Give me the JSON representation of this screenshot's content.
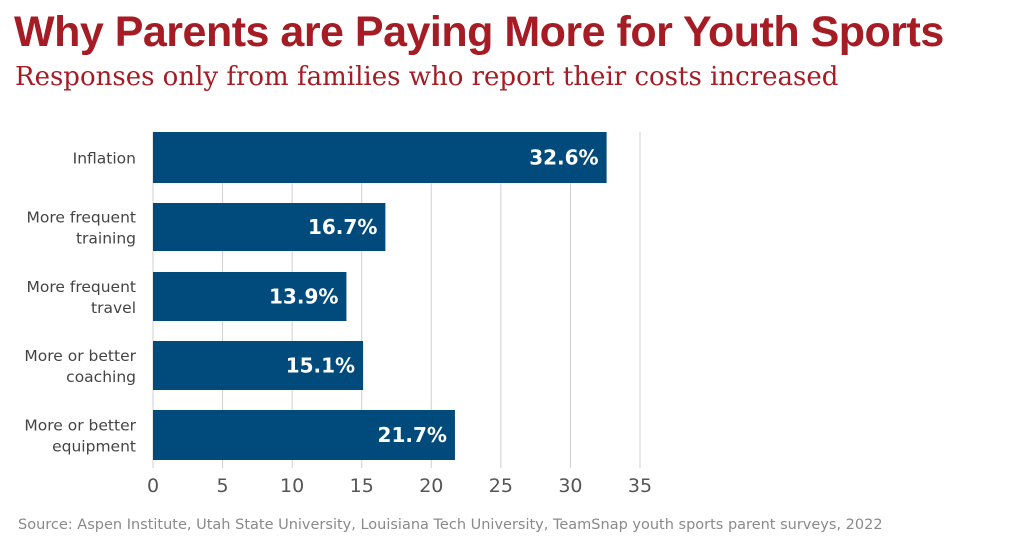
{
  "title": "Why Parents are Paying More for Youth Sports",
  "subtitle": "Responses only from families who report their costs increased",
  "source": "Source: Aspen Institute, Utah State University, Louisiana Tech University, TeamSnap youth sports parent surveys, 2022",
  "chart_data": {
    "type": "bar",
    "orientation": "horizontal",
    "categories": [
      [
        "Inflation"
      ],
      [
        "More frequent",
        "training"
      ],
      [
        "More frequent",
        "travel"
      ],
      [
        "More or better",
        "coaching"
      ],
      [
        "More or better",
        "equipment"
      ]
    ],
    "values": [
      32.6,
      16.7,
      13.9,
      15.1,
      21.7
    ],
    "data_labels": [
      "32.6%",
      "16.7%",
      "13.9%",
      "15.1%",
      "21.7%"
    ],
    "xlim": [
      0,
      35
    ],
    "xticks": [
      "0",
      "5",
      "10",
      "15",
      "20",
      "25",
      "30",
      "35"
    ],
    "grid": "vertical",
    "bar_color": "#004a7c",
    "label_color": "#ffffff"
  }
}
